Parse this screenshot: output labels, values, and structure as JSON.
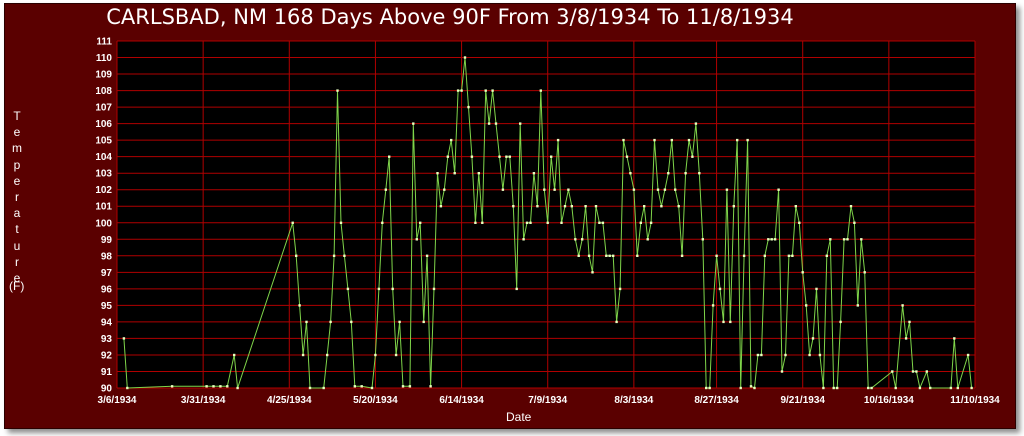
{
  "chart_data": {
    "type": "line",
    "title": "CARLSBAD, NM  168 Days Above 90F From 3/8/1934 To 11/8/1934",
    "xlabel": "Date",
    "ylabel": "Temperature",
    "yunit": "(F)",
    "x_start": "3/6/1934",
    "x_end": "11/10/1934",
    "ylim": [
      90,
      111
    ],
    "yticks": [
      90,
      91,
      92,
      93,
      94,
      95,
      96,
      97,
      98,
      99,
      100,
      101,
      102,
      103,
      104,
      105,
      106,
      107,
      108,
      109,
      110,
      111
    ],
    "xticks": [
      "3/6/1934",
      "3/31/1934",
      "4/25/1934",
      "5/20/1934",
      "6/14/1934",
      "7/9/1934",
      "8/3/1934",
      "8/27/1934",
      "9/21/1934",
      "10/16/1934",
      "11/10/1934"
    ],
    "grid": true,
    "colors": {
      "background": "#000000",
      "frame": "#5a0000",
      "grid": "#b00000",
      "line": "#7fd54a",
      "marker": "#e6ffc0"
    },
    "series": [
      {
        "points": [
          [
            "3/8/1934",
            93
          ],
          [
            "3/9/1934",
            90
          ],
          [
            "3/22/1934",
            90.1
          ],
          [
            "4/1/1934",
            90.1
          ],
          [
            "4/3/1934",
            90.1
          ],
          [
            "4/5/1934",
            90.1
          ],
          [
            "4/7/1934",
            90.1
          ],
          [
            "4/9/1934",
            92
          ],
          [
            "4/10/1934",
            90
          ],
          [
            "4/26/1934",
            100
          ],
          [
            "4/27/1934",
            98
          ],
          [
            "4/28/1934",
            95
          ],
          [
            "4/29/1934",
            92
          ],
          [
            "4/30/1934",
            94
          ],
          [
            "5/1/1934",
            90
          ],
          [
            "5/5/1934",
            90
          ],
          [
            "5/6/1934",
            92
          ],
          [
            "5/7/1934",
            94
          ],
          [
            "5/8/1934",
            98
          ],
          [
            "5/9/1934",
            108
          ],
          [
            "5/10/1934",
            100
          ],
          [
            "5/11/1934",
            98
          ],
          [
            "5/12/1934",
            96
          ],
          [
            "5/13/1934",
            94
          ],
          [
            "5/14/1934",
            90.1
          ],
          [
            "5/16/1934",
            90.1
          ],
          [
            "5/19/1934",
            90
          ],
          [
            "5/20/1934",
            92
          ],
          [
            "5/21/1934",
            96
          ],
          [
            "5/22/1934",
            100
          ],
          [
            "5/23/1934",
            102
          ],
          [
            "5/24/1934",
            104
          ],
          [
            "5/25/1934",
            96
          ],
          [
            "5/26/1934",
            92
          ],
          [
            "5/27/1934",
            94
          ],
          [
            "5/28/1934",
            90.1
          ],
          [
            "5/30/1934",
            90.1
          ],
          [
            "5/31/1934",
            106
          ],
          [
            "6/1/1934",
            99
          ],
          [
            "6/2/1934",
            100
          ],
          [
            "6/3/1934",
            94
          ],
          [
            "6/4/1934",
            98
          ],
          [
            "6/5/1934",
            90.1
          ],
          [
            "6/6/1934",
            96
          ],
          [
            "6/7/1934",
            103
          ],
          [
            "6/8/1934",
            101
          ],
          [
            "6/9/1934",
            102
          ],
          [
            "6/10/1934",
            104
          ],
          [
            "6/11/1934",
            105
          ],
          [
            "6/12/1934",
            103
          ],
          [
            "6/13/1934",
            108
          ],
          [
            "6/14/1934",
            108
          ],
          [
            "6/15/1934",
            110
          ],
          [
            "6/16/1934",
            107
          ],
          [
            "6/17/1934",
            104
          ],
          [
            "6/18/1934",
            100
          ],
          [
            "6/19/1934",
            103
          ],
          [
            "6/20/1934",
            100
          ],
          [
            "6/21/1934",
            108
          ],
          [
            "6/22/1934",
            106
          ],
          [
            "6/23/1934",
            108
          ],
          [
            "6/24/1934",
            106
          ],
          [
            "6/25/1934",
            104
          ],
          [
            "6/26/1934",
            102
          ],
          [
            "6/27/1934",
            104
          ],
          [
            "6/28/1934",
            104
          ],
          [
            "6/29/1934",
            101
          ],
          [
            "6/30/1934",
            96
          ],
          [
            "7/1/1934",
            106
          ],
          [
            "7/2/1934",
            99
          ],
          [
            "7/3/1934",
            100
          ],
          [
            "7/4/1934",
            100
          ],
          [
            "7/5/1934",
            103
          ],
          [
            "7/6/1934",
            101
          ],
          [
            "7/7/1934",
            108
          ],
          [
            "7/8/1934",
            102
          ],
          [
            "7/9/1934",
            100
          ],
          [
            "7/10/1934",
            104
          ],
          [
            "7/11/1934",
            102
          ],
          [
            "7/12/1934",
            105
          ],
          [
            "7/13/1934",
            100
          ],
          [
            "7/14/1934",
            101
          ],
          [
            "7/15/1934",
            102
          ],
          [
            "7/16/1934",
            101
          ],
          [
            "7/17/1934",
            99
          ],
          [
            "7/18/1934",
            98
          ],
          [
            "7/19/1934",
            99
          ],
          [
            "7/20/1934",
            101
          ],
          [
            "7/21/1934",
            98
          ],
          [
            "7/22/1934",
            97
          ],
          [
            "7/23/1934",
            101
          ],
          [
            "7/24/1934",
            100
          ],
          [
            "7/25/1934",
            100
          ],
          [
            "7/26/1934",
            98
          ],
          [
            "7/27/1934",
            98
          ],
          [
            "7/28/1934",
            98
          ],
          [
            "7/29/1934",
            94
          ],
          [
            "7/30/1934",
            96
          ],
          [
            "7/31/1934",
            105
          ],
          [
            "8/1/1934",
            104
          ],
          [
            "8/2/1934",
            103
          ],
          [
            "8/3/1934",
            102
          ],
          [
            "8/4/1934",
            98
          ],
          [
            "8/5/1934",
            100
          ],
          [
            "8/6/1934",
            101
          ],
          [
            "8/7/1934",
            99
          ],
          [
            "8/8/1934",
            100
          ],
          [
            "8/9/1934",
            105
          ],
          [
            "8/10/1934",
            102
          ],
          [
            "8/11/1934",
            101
          ],
          [
            "8/12/1934",
            102
          ],
          [
            "8/13/1934",
            103
          ],
          [
            "8/14/1934",
            105
          ],
          [
            "8/15/1934",
            102
          ],
          [
            "8/16/1934",
            101
          ],
          [
            "8/17/1934",
            98
          ],
          [
            "8/18/1934",
            103
          ],
          [
            "8/19/1934",
            105
          ],
          [
            "8/20/1934",
            104
          ],
          [
            "8/21/1934",
            106
          ],
          [
            "8/22/1934",
            103
          ],
          [
            "8/23/1934",
            99
          ],
          [
            "8/24/1934",
            90
          ],
          [
            "8/25/1934",
            90
          ],
          [
            "8/26/1934",
            95
          ],
          [
            "8/27/1934",
            98
          ],
          [
            "8/28/1934",
            96
          ],
          [
            "8/29/1934",
            94
          ],
          [
            "8/30/1934",
            102
          ],
          [
            "8/31/1934",
            94
          ],
          [
            "9/1/1934",
            101
          ],
          [
            "9/2/1934",
            105
          ],
          [
            "9/3/1934",
            90
          ],
          [
            "9/4/1934",
            98
          ],
          [
            "9/5/1934",
            105
          ],
          [
            "9/6/1934",
            90.1
          ],
          [
            "9/7/1934",
            90
          ],
          [
            "9/8/1934",
            92
          ],
          [
            "9/9/1934",
            92
          ],
          [
            "9/10/1934",
            98
          ],
          [
            "9/11/1934",
            99
          ],
          [
            "9/12/1934",
            99
          ],
          [
            "9/13/1934",
            99
          ],
          [
            "9/14/1934",
            102
          ],
          [
            "9/15/1934",
            91
          ],
          [
            "9/16/1934",
            92
          ],
          [
            "9/17/1934",
            98
          ],
          [
            "9/18/1934",
            98
          ],
          [
            "9/19/1934",
            101
          ],
          [
            "9/20/1934",
            100
          ],
          [
            "9/21/1934",
            97
          ],
          [
            "9/22/1934",
            95
          ],
          [
            "9/23/1934",
            92
          ],
          [
            "9/24/1934",
            93
          ],
          [
            "9/25/1934",
            96
          ],
          [
            "9/26/1934",
            92
          ],
          [
            "9/27/1934",
            90
          ],
          [
            "9/28/1934",
            98
          ],
          [
            "9/29/1934",
            99
          ],
          [
            "9/30/1934",
            90
          ],
          [
            "10/1/1934",
            90
          ],
          [
            "10/2/1934",
            94
          ],
          [
            "10/3/1934",
            99
          ],
          [
            "10/4/1934",
            99
          ],
          [
            "10/5/1934",
            101
          ],
          [
            "10/6/1934",
            100
          ],
          [
            "10/7/1934",
            95
          ],
          [
            "10/8/1934",
            99
          ],
          [
            "10/9/1934",
            97
          ],
          [
            "10/10/1934",
            90
          ],
          [
            "10/11/1934",
            90
          ],
          [
            "10/17/1934",
            91
          ],
          [
            "10/18/1934",
            90
          ],
          [
            "10/20/1934",
            95
          ],
          [
            "10/21/1934",
            93
          ],
          [
            "10/22/1934",
            94
          ],
          [
            "10/23/1934",
            91
          ],
          [
            "10/24/1934",
            91
          ],
          [
            "10/25/1934",
            90
          ],
          [
            "10/27/1934",
            91
          ],
          [
            "10/28/1934",
            90
          ],
          [
            "11/3/1934",
            90
          ],
          [
            "11/4/1934",
            93
          ],
          [
            "11/5/1934",
            90
          ],
          [
            "11/8/1934",
            92
          ],
          [
            "11/9/1934",
            90
          ]
        ]
      }
    ]
  }
}
